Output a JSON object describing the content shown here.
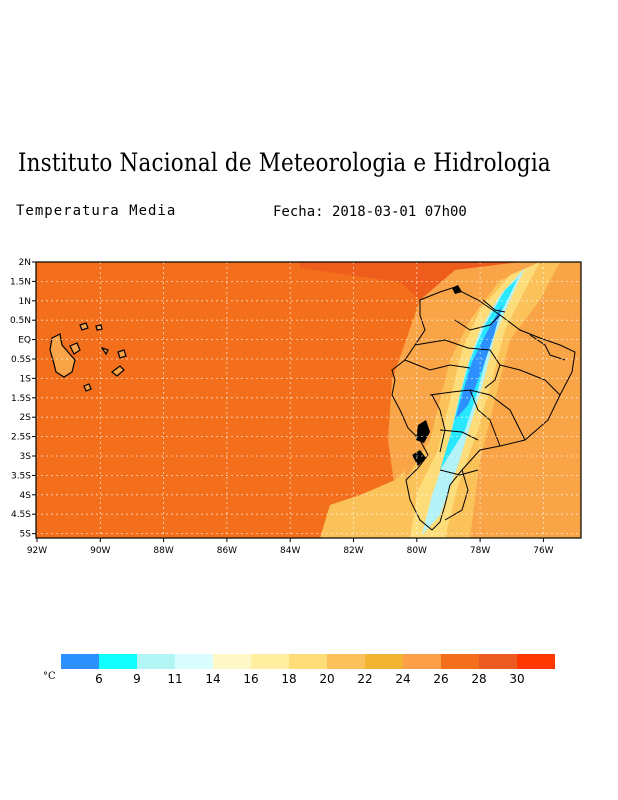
{
  "header": {
    "title": "Instituto Nacional de Meteorologia e Hidrologia",
    "subtitle": "Temperatura Media",
    "date": "Fecha: 2018-03-01 07h00"
  },
  "map": {
    "lat_labels": [
      "2N",
      "1.5N",
      "1N",
      "0.5N",
      "EQ",
      "0.5S",
      "1S",
      "1.5S",
      "2S",
      "2.5S",
      "3S",
      "3.5S",
      "4S",
      "4.5S",
      "5S"
    ],
    "lon_labels": [
      "92W",
      "90W",
      "88W",
      "86W",
      "84W",
      "82W",
      "80W",
      "78W",
      "76W"
    ],
    "colors": {
      "ocean": "#f36f1b",
      "ocean_north": "#ef5d1c",
      "warm": "#f8a447",
      "mild": "#fbc25a",
      "cool": "#fddd7a",
      "cold": "#b3f2f7",
      "colder": "#27e8ff",
      "coldest": "#2d90ff"
    }
  },
  "legend": {
    "unit": "°C",
    "colors": [
      "#2d90ff",
      "#12ffff",
      "#b3f5f5",
      "#dafeff",
      "#fff9c9",
      "#ffef9e",
      "#fedd78",
      "#fbc25a",
      "#f3b434",
      "#fd9f49",
      "#f36f1b",
      "#ec5b22",
      "#ff3700"
    ],
    "labels": [
      "6",
      "9",
      "11",
      "14",
      "16",
      "18",
      "20",
      "22",
      "24",
      "26",
      "28",
      "30"
    ]
  }
}
